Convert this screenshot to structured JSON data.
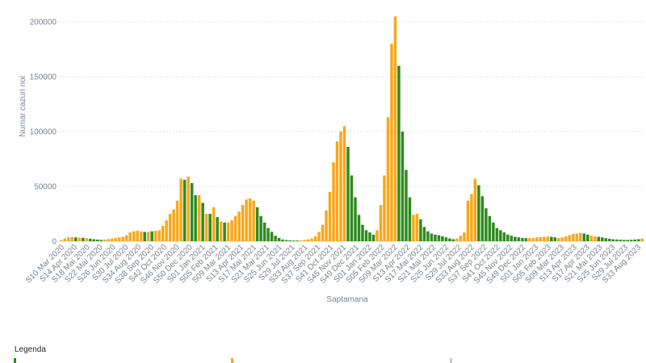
{
  "chart_data": {
    "type": "bar",
    "xlabel": "Saptamana",
    "ylabel": "Numar cazuri noi",
    "ylim": [
      0,
      220000
    ],
    "yticks": [
      0,
      50000,
      100000,
      150000,
      200000
    ],
    "ytick_labels": [
      "0",
      "50000",
      "100000",
      "150000",
      "200000"
    ],
    "grid": true,
    "legend_position": "bottom-left",
    "colors": {
      "green": "#2e8b1e",
      "orange": "#f7a81b",
      "grid": "#dde3ea",
      "axis": "#c7ccd3"
    },
    "week_labels": [
      "S10 Mar 2020",
      "S14 Apr 2020",
      "S18 Mai 2020",
      "S22 Mai 2020",
      "S26 Jun 2020",
      "S30 Jul 2020",
      "S34 Aug 2020",
      "S38 Sep 2020",
      "S42 Oct 2020",
      "S46 Nov 2020",
      "S50 Dec 2020",
      "S01 Jan 2021",
      "S05 Feb 2021",
      "S09 Mar 2021",
      "S13 Apr 2021",
      "S17 Mai 2021",
      "S21 Mai 2021",
      "S25 Jun 2021",
      "S29 Jul 2021",
      "S33 Aug 2021",
      "S37 Sep 2021",
      "S41 Oct 2021",
      "S45 Nov 2021",
      "S49 Dec 2021",
      "S01 Jan 2022",
      "S05 Feb 2022",
      "S09 Mar 2022",
      "S13 Apr 2022",
      "S17 Mai 2022",
      "S21 Mai 2022",
      "S25 Jun 2022",
      "S29 Jul 2022",
      "S33 Aug 2022",
      "S37 Sep 2022",
      "S41 Oct 2022",
      "S45 Nov 2022",
      "S49 Dec 2022",
      "S01 Jan 2023",
      "S05 Feb 2023",
      "S09 Mar 2023",
      "S13 Apr 2023",
      "S17 Apr 2023",
      "S21 Mai 2023",
      "S25 Jun 2023",
      "S29 Jul 2023",
      "S33 Aug 2023"
    ],
    "values": [
      1000,
      2500,
      3500,
      3800,
      3500,
      3200,
      3000,
      2800,
      2300,
      1800,
      1500,
      1200,
      1500,
      2000,
      2500,
      3000,
      3500,
      4000,
      5500,
      8000,
      9000,
      9500,
      9000,
      8500,
      8500,
      9000,
      9500,
      10000,
      14000,
      19000,
      25000,
      29000,
      37000,
      57000,
      56000,
      59000,
      53000,
      42000,
      42000,
      35000,
      25000,
      25000,
      31000,
      22000,
      18000,
      17000,
      17000,
      19000,
      23000,
      27000,
      33000,
      38000,
      39000,
      37000,
      31000,
      23000,
      17000,
      12000,
      8500,
      5000,
      3000,
      1500,
      1000,
      700,
      600,
      600,
      700,
      1200,
      1700,
      2500,
      4500,
      8500,
      15000,
      28000,
      45000,
      72000,
      91000,
      100000,
      105000,
      86000,
      60000,
      40000,
      24000,
      15000,
      10000,
      8000,
      6000,
      10000,
      33000,
      60000,
      113000,
      180000,
      205000,
      160000,
      100000,
      65000,
      40000,
      24000,
      25000,
      20000,
      13000,
      9000,
      7000,
      6000,
      5500,
      4500,
      3500,
      2500,
      1800,
      2500,
      5000,
      8000,
      37000,
      43000,
      57000,
      51000,
      41000,
      30000,
      23000,
      17000,
      12000,
      10000,
      8000,
      6000,
      5000,
      4000,
      3500,
      3000,
      2800,
      2800,
      3000,
      3500,
      3800,
      4000,
      4200,
      4000,
      3500,
      3000,
      3500,
      4500,
      5500,
      6500,
      7000,
      7500,
      7000,
      6000,
      5000,
      4500,
      4000,
      3500,
      2800,
      2200,
      1800,
      1500,
      1300,
      1200,
      1200,
      1300,
      1500,
      1800,
      2500
    ],
    "series_colors": [
      "orange",
      "orange",
      "orange",
      "orange",
      "green",
      "orange",
      "green",
      "orange",
      "green",
      "green",
      "green",
      "green",
      "orange",
      "orange",
      "orange",
      "orange",
      "orange",
      "orange",
      "orange",
      "orange",
      "orange",
      "orange",
      "orange",
      "green",
      "orange",
      "green",
      "orange",
      "orange",
      "orange",
      "orange",
      "orange",
      "orange",
      "orange",
      "orange",
      "green",
      "orange",
      "green",
      "green",
      "orange",
      "green",
      "orange",
      "green",
      "orange",
      "green",
      "orange",
      "green",
      "orange",
      "orange",
      "orange",
      "orange",
      "orange",
      "orange",
      "orange",
      "orange",
      "green",
      "green",
      "green",
      "green",
      "green",
      "green",
      "green",
      "green",
      "green",
      "green",
      "green",
      "green",
      "orange",
      "orange",
      "orange",
      "orange",
      "orange",
      "orange",
      "orange",
      "orange",
      "orange",
      "orange",
      "orange",
      "orange",
      "orange",
      "green",
      "green",
      "green",
      "green",
      "green",
      "green",
      "green",
      "green",
      "orange",
      "orange",
      "orange",
      "orange",
      "orange",
      "orange",
      "green",
      "green",
      "green",
      "green",
      "orange",
      "orange",
      "green",
      "green",
      "green",
      "green",
      "green",
      "green",
      "green",
      "green",
      "green",
      "green",
      "orange",
      "orange",
      "orange",
      "orange",
      "orange",
      "orange",
      "green",
      "green",
      "green",
      "green",
      "green",
      "green",
      "green",
      "green",
      "green",
      "green",
      "green",
      "green",
      "green",
      "green",
      "orange",
      "orange",
      "orange",
      "orange",
      "orange",
      "orange",
      "green",
      "green",
      "orange",
      "orange",
      "orange",
      "orange",
      "orange",
      "orange",
      "orange",
      "green",
      "green",
      "orange",
      "orange",
      "green",
      "green",
      "green",
      "green",
      "green",
      "green",
      "green",
      "green",
      "green",
      "green",
      "green",
      "green",
      "orange"
    ]
  },
  "legend": {
    "title": "Legenda",
    "swatches": [
      "#2e8b1e",
      "#f7a81b",
      "#cccccc"
    ]
  }
}
